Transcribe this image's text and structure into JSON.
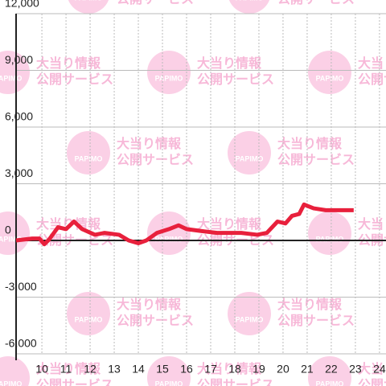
{
  "chart_data": {
    "type": "line",
    "watermark": {
      "brand": "PAPIMO",
      "line1": "大当り情報",
      "line2": "公開サービス"
    },
    "x": [
      8.93,
      9.6,
      9.9,
      10.1,
      10.3,
      10.67,
      11,
      11.33,
      11.67,
      12.2,
      12.6,
      13.2,
      13.6,
      14,
      14.33,
      14.77,
      15.27,
      15.67,
      16,
      16.6,
      17.27,
      18.27,
      18.93,
      19.33,
      19.77,
      20.1,
      20.37,
      20.67,
      20.87,
      21.27,
      21.77,
      22.27,
      22.93
    ],
    "series": [
      {
        "color": "#e8203c",
        "values": [
          0,
          100,
          100,
          -200,
          50,
          700,
          600,
          1000,
          600,
          300,
          400,
          300,
          0,
          -150,
          0,
          400,
          600,
          800,
          600,
          500,
          400,
          400,
          300,
          400,
          1000,
          900,
          1300,
          1400,
          1900,
          1700,
          1600,
          1600,
          1600
        ]
      }
    ],
    "xlim": [
      8.93,
      24.27
    ],
    "xticks": [
      10,
      11,
      12,
      13,
      14,
      15,
      16,
      17,
      18,
      19,
      20,
      21,
      22,
      23,
      24
    ],
    "ylim": [
      -6000,
      12000
    ],
    "yticks": [
      {
        "value": -6000,
        "label": "-6,000"
      },
      {
        "value": -3000,
        "label": "-3,000"
      },
      0,
      {
        "value": 3000,
        "label": "3,000"
      },
      {
        "value": 6000,
        "label": "6,000"
      },
      {
        "value": 9000,
        "label": "9,000"
      },
      {
        "value": 12000,
        "label": "12,000"
      }
    ],
    "grid": true
  }
}
